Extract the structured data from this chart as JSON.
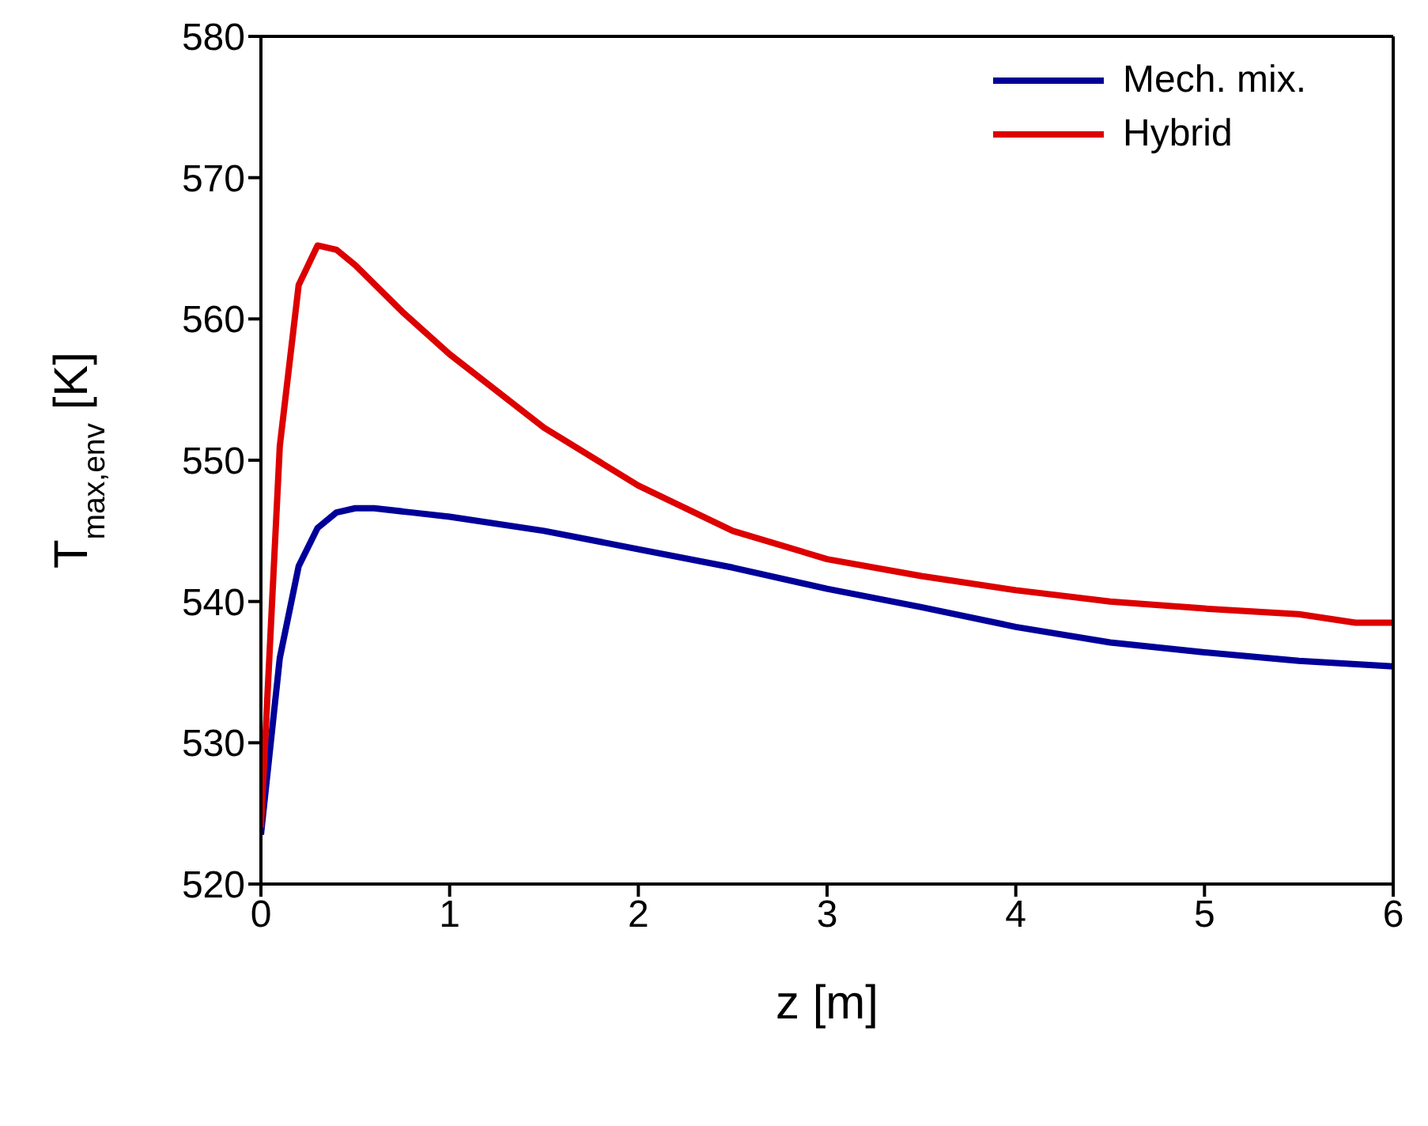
{
  "chart_data": {
    "type": "line",
    "xlabel": "z [m]",
    "ylabel": "T$_{max,env}$ [K]",
    "xlim": [
      0,
      6
    ],
    "xticks": [
      0,
      1,
      2,
      3,
      4,
      5,
      6
    ],
    "ylim": [
      520,
      580
    ],
    "yticks": [
      520,
      530,
      540,
      550,
      560,
      570,
      580
    ],
    "grid": false,
    "legend": "top right",
    "marker": "none",
    "line_style": "solid",
    "series": [
      {
        "name": "Mech. mix.",
        "color": "#000099",
        "x": [
          0,
          0.1,
          0.2,
          0.3,
          0.4,
          0.5,
          0.6,
          0.8,
          1,
          1.5,
          2,
          2.5,
          3,
          3.5,
          4,
          4.5,
          5,
          5.5,
          6
        ],
        "values": [
          523.5,
          536,
          542.5,
          545.2,
          546.3,
          546.6,
          546.6,
          546.3,
          546,
          545,
          543.7,
          542.4,
          540.9,
          539.6,
          538.2,
          537.1,
          536.4,
          535.8,
          535.4
        ]
      },
      {
        "name": "Hybrid",
        "color": "#dd0000",
        "x": [
          0,
          0.1,
          0.2,
          0.3,
          0.4,
          0.5,
          0.75,
          1,
          1.5,
          2,
          2.5,
          3,
          3.5,
          4,
          4.5,
          5,
          5.5,
          5.8,
          6
        ],
        "values": [
          524,
          551,
          562.4,
          565.2,
          564.9,
          563.8,
          560.5,
          557.5,
          552.3,
          548.2,
          545,
          543,
          541.8,
          540.8,
          540,
          539.5,
          539.1,
          538.5,
          538.5
        ]
      }
    ]
  }
}
